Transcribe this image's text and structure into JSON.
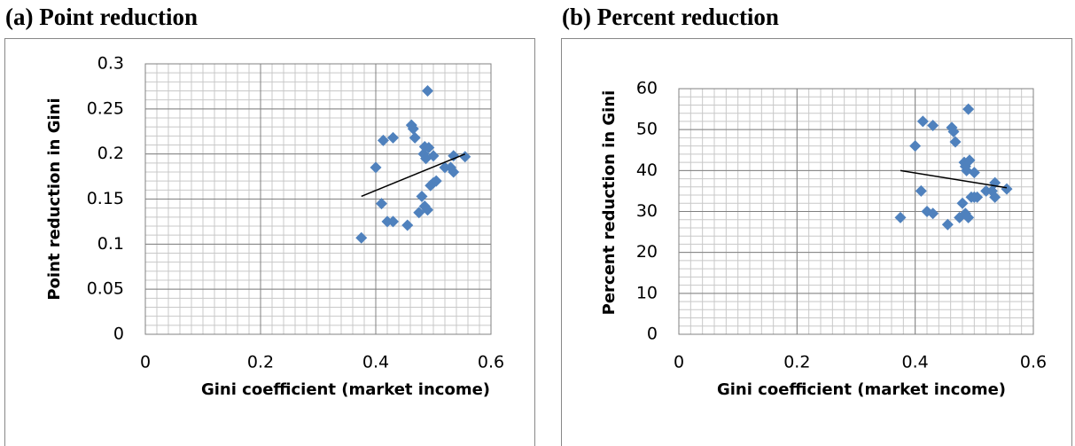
{
  "chart_data": [
    {
      "type": "scatter",
      "title": "(a) Point reduction",
      "x_label": "Gini coefficient (market income)",
      "y_label": "Point reduction in Gini",
      "xlim": [
        0,
        0.6
      ],
      "xticks": [
        0,
        0.2,
        0.4,
        0.6
      ],
      "ylim": [
        0,
        0.3
      ],
      "yticks": [
        0,
        0.05,
        0.1,
        0.15,
        0.2,
        0.25,
        0.3
      ],
      "grid": true,
      "minor_grid": {
        "x": 0.02,
        "y": 0.01
      },
      "series": [
        {
          "color": "#4f81bd",
          "x": [
            0.375,
            0.4,
            0.41,
            0.413,
            0.42,
            0.43,
            0.43,
            0.455,
            0.462,
            0.465,
            0.468,
            0.475,
            0.48,
            0.483,
            0.485,
            0.487,
            0.49,
            0.49,
            0.492,
            0.495,
            0.5,
            0.5,
            0.505,
            0.52,
            0.53,
            0.535,
            0.535,
            0.555,
            0.485
          ],
          "values": [
            0.107,
            0.185,
            0.145,
            0.215,
            0.125,
            0.218,
            0.125,
            0.121,
            0.232,
            0.228,
            0.218,
            0.135,
            0.153,
            0.2,
            0.142,
            0.195,
            0.27,
            0.138,
            0.207,
            0.165,
            0.198,
            0.168,
            0.17,
            0.185,
            0.185,
            0.198,
            0.18,
            0.197,
            0.208
          ]
        }
      ],
      "trendline": {
        "color": "#000000",
        "x": [
          0.375,
          0.555
        ],
        "y": [
          0.153,
          0.2
        ]
      }
    },
    {
      "type": "scatter",
      "title": "(b) Percent reduction",
      "x_label": "Gini coefficient (market income)",
      "y_label": "Percent reduction in Gini",
      "xlim": [
        0,
        0.6
      ],
      "xticks": [
        0,
        0.2,
        0.4,
        0.6
      ],
      "ylim": [
        0,
        60
      ],
      "yticks": [
        0,
        10,
        20,
        30,
        40,
        50,
        60
      ],
      "grid": true,
      "minor_grid": {
        "x": 0.02,
        "y": 2
      },
      "series": [
        {
          "color": "#4f81bd",
          "x": [
            0.375,
            0.4,
            0.41,
            0.413,
            0.42,
            0.43,
            0.43,
            0.455,
            0.462,
            0.465,
            0.468,
            0.475,
            0.48,
            0.483,
            0.485,
            0.487,
            0.49,
            0.49,
            0.492,
            0.495,
            0.5,
            0.5,
            0.505,
            0.52,
            0.53,
            0.535,
            0.535,
            0.555,
            0.485
          ],
          "values": [
            28.5,
            46,
            35,
            52,
            30,
            51,
            29.5,
            26.8,
            50.5,
            49.5,
            47,
            28.5,
            32,
            42,
            29.5,
            40,
            55,
            28.5,
            42.5,
            33.5,
            39.5,
            33.5,
            33.5,
            35,
            35,
            37,
            33.5,
            35.5,
            41
          ]
        }
      ],
      "trendline": {
        "color": "#000000",
        "x": [
          0.375,
          0.555
        ],
        "y": [
          40,
          35.8
        ]
      }
    }
  ]
}
